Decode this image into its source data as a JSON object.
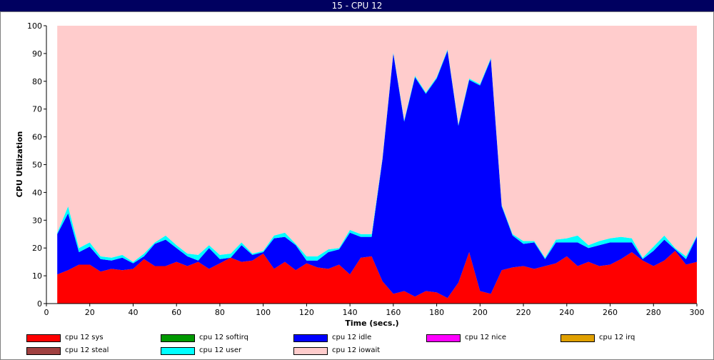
{
  "window": {
    "title": "15 - CPU 12"
  },
  "chart_data": {
    "type": "area",
    "stacked": true,
    "xlabel": "Time (secs.)",
    "ylabel": "CPU Utilization",
    "xlim": [
      0,
      300
    ],
    "ylim": [
      0,
      100
    ],
    "xticks": [
      0,
      20,
      40,
      60,
      80,
      100,
      120,
      140,
      160,
      180,
      200,
      220,
      240,
      260,
      280,
      300
    ],
    "yticks": [
      0,
      10,
      20,
      30,
      40,
      50,
      60,
      70,
      80,
      90,
      100
    ],
    "x": [
      5,
      10,
      15,
      20,
      25,
      30,
      35,
      40,
      45,
      50,
      55,
      60,
      65,
      70,
      75,
      80,
      85,
      90,
      95,
      100,
      105,
      110,
      115,
      120,
      125,
      130,
      135,
      140,
      145,
      150,
      155,
      160,
      165,
      170,
      175,
      180,
      185,
      190,
      195,
      200,
      205,
      210,
      215,
      220,
      225,
      230,
      235,
      240,
      245,
      250,
      255,
      260,
      265,
      270,
      275,
      280,
      285,
      290,
      295,
      300
    ],
    "series": [
      {
        "name": "cpu 12 sys",
        "color": "#ff0000",
        "values": [
          10.5,
          12,
          14,
          14,
          11.5,
          12.5,
          12,
          12.5,
          16,
          13.5,
          13.5,
          15,
          13.5,
          15,
          12.5,
          14.5,
          16.5,
          15,
          15.5,
          18,
          12.5,
          15,
          12,
          14.5,
          13,
          12.5,
          14,
          10.5,
          16.5,
          17,
          8,
          3.5,
          4.5,
          2.5,
          4.5,
          4,
          2,
          7.5,
          18.5,
          4.5,
          3.5,
          12,
          13,
          13.5,
          12.5,
          13.5,
          14.5,
          17,
          13.5,
          15,
          13.5,
          14,
          16,
          18.5,
          15.5,
          13.5,
          15.5,
          19,
          14,
          15
        ]
      },
      {
        "name": "cpu 12 softirq",
        "color": "#009900",
        "values": [
          0,
          0,
          0,
          0,
          0,
          0,
          0,
          0,
          0,
          0,
          0,
          0,
          0,
          0,
          0,
          0,
          0,
          0,
          0,
          0,
          0,
          0,
          0,
          0,
          0,
          0,
          0,
          0,
          0,
          0,
          0,
          0,
          0,
          0,
          0,
          0,
          0,
          0,
          0,
          0,
          0,
          0,
          0,
          0,
          0,
          0,
          0,
          0,
          0,
          0,
          0,
          0,
          0,
          0,
          0,
          0,
          0,
          0,
          0,
          0
        ]
      },
      {
        "name": "cpu 12 idle",
        "color": "#0000ff",
        "values": [
          14.5,
          20.5,
          4.5,
          6.5,
          4.5,
          3,
          4.5,
          2,
          1,
          8,
          9.5,
          5,
          3.5,
          0.5,
          7.5,
          1.5,
          0,
          6,
          2,
          0.5,
          11,
          9,
          9,
          1,
          2.5,
          6,
          5.5,
          15,
          7.5,
          7,
          44,
          86.5,
          61,
          79,
          71,
          77,
          89,
          56.5,
          62,
          74,
          84.5,
          23,
          11.5,
          8,
          9.5,
          2.5,
          7.5,
          5,
          8.5,
          5,
          7.5,
          8,
          6,
          3.5,
          0.5,
          5.5,
          7.5,
          0.5,
          2,
          9
        ]
      },
      {
        "name": "cpu 12 nice",
        "color": "#ff00ff",
        "values": [
          0,
          0,
          0,
          0,
          0,
          0,
          0,
          0,
          0,
          0,
          0,
          0,
          0,
          0,
          0,
          0,
          0,
          0,
          0,
          0,
          0,
          0,
          0,
          0,
          0,
          0,
          0,
          0,
          0,
          0,
          0,
          0,
          0,
          0,
          0,
          0,
          0,
          0,
          0,
          0,
          0,
          0,
          0,
          0,
          0,
          0,
          0,
          0,
          0,
          0,
          0,
          0,
          0,
          0,
          0,
          0,
          0,
          0,
          0,
          0
        ]
      },
      {
        "name": "cpu 12 irq",
        "color": "#e0a000",
        "values": [
          0,
          0,
          0,
          0,
          0,
          0,
          0,
          0,
          0,
          0,
          0,
          0,
          0,
          0,
          0,
          0,
          0,
          0,
          0,
          0,
          0,
          0,
          0,
          0,
          0,
          0,
          0,
          0,
          0,
          0,
          0,
          0,
          0,
          0,
          0,
          0,
          0,
          0,
          0,
          0,
          0,
          0,
          0,
          0,
          0,
          0,
          0,
          0,
          0,
          0,
          0,
          0,
          0,
          0,
          0,
          0,
          0,
          0,
          0,
          0
        ]
      },
      {
        "name": "cpu 12 steal",
        "color": "#a04040",
        "values": [
          0,
          0,
          0,
          0,
          0,
          0,
          0,
          0,
          0,
          0,
          0,
          0,
          0,
          0,
          0,
          0,
          0,
          0,
          0,
          0,
          0,
          0,
          0,
          0,
          0,
          0,
          0,
          0,
          0,
          0,
          0,
          0,
          0,
          0,
          0,
          0,
          0,
          0,
          0,
          0,
          0,
          0,
          0,
          0,
          0,
          0,
          0,
          0,
          0,
          0,
          0,
          0,
          0,
          0,
          0,
          0,
          0,
          0,
          0,
          0
        ]
      },
      {
        "name": "cpu 12 user",
        "color": "#00ffff",
        "values": [
          0.5,
          2.5,
          1.5,
          1.5,
          1,
          1,
          1,
          0.5,
          1,
          0.5,
          1.5,
          1,
          1,
          2,
          1,
          1.5,
          1.5,
          1,
          0.5,
          0.5,
          1,
          1.5,
          0.5,
          1.5,
          1.5,
          1,
          0.5,
          1,
          1,
          1,
          0.5,
          0.5,
          0.5,
          0.5,
          0.5,
          0.5,
          0.5,
          0.5,
          0.5,
          0.5,
          0.5,
          0.5,
          0.5,
          1,
          0.5,
          0.5,
          1,
          1.5,
          2.5,
          1,
          1.5,
          1.5,
          2,
          1.5,
          0.5,
          1.5,
          1.5,
          0.5,
          1,
          0.5
        ]
      },
      {
        "name": "cpu 12 iowait",
        "color": "#ffcccc",
        "values": [
          74.5,
          65,
          80,
          78,
          83,
          83.5,
          82.5,
          85,
          82,
          78,
          75.5,
          79,
          82,
          82.5,
          79,
          82.5,
          82,
          78,
          82,
          81,
          75.5,
          74.5,
          78.5,
          83,
          83,
          80.5,
          80,
          73.5,
          75,
          75,
          47.5,
          9.5,
          34,
          18,
          24,
          18.5,
          8.5,
          35.5,
          19,
          21,
          11.5,
          64.5,
          75,
          77.5,
          77.5,
          83.5,
          77,
          76.5,
          75.5,
          79,
          77.5,
          76.5,
          76,
          76.5,
          83.5,
          79.5,
          75.5,
          80,
          83,
          75.5
        ]
      }
    ],
    "legend": {
      "position": "bottom"
    },
    "grid": false
  }
}
